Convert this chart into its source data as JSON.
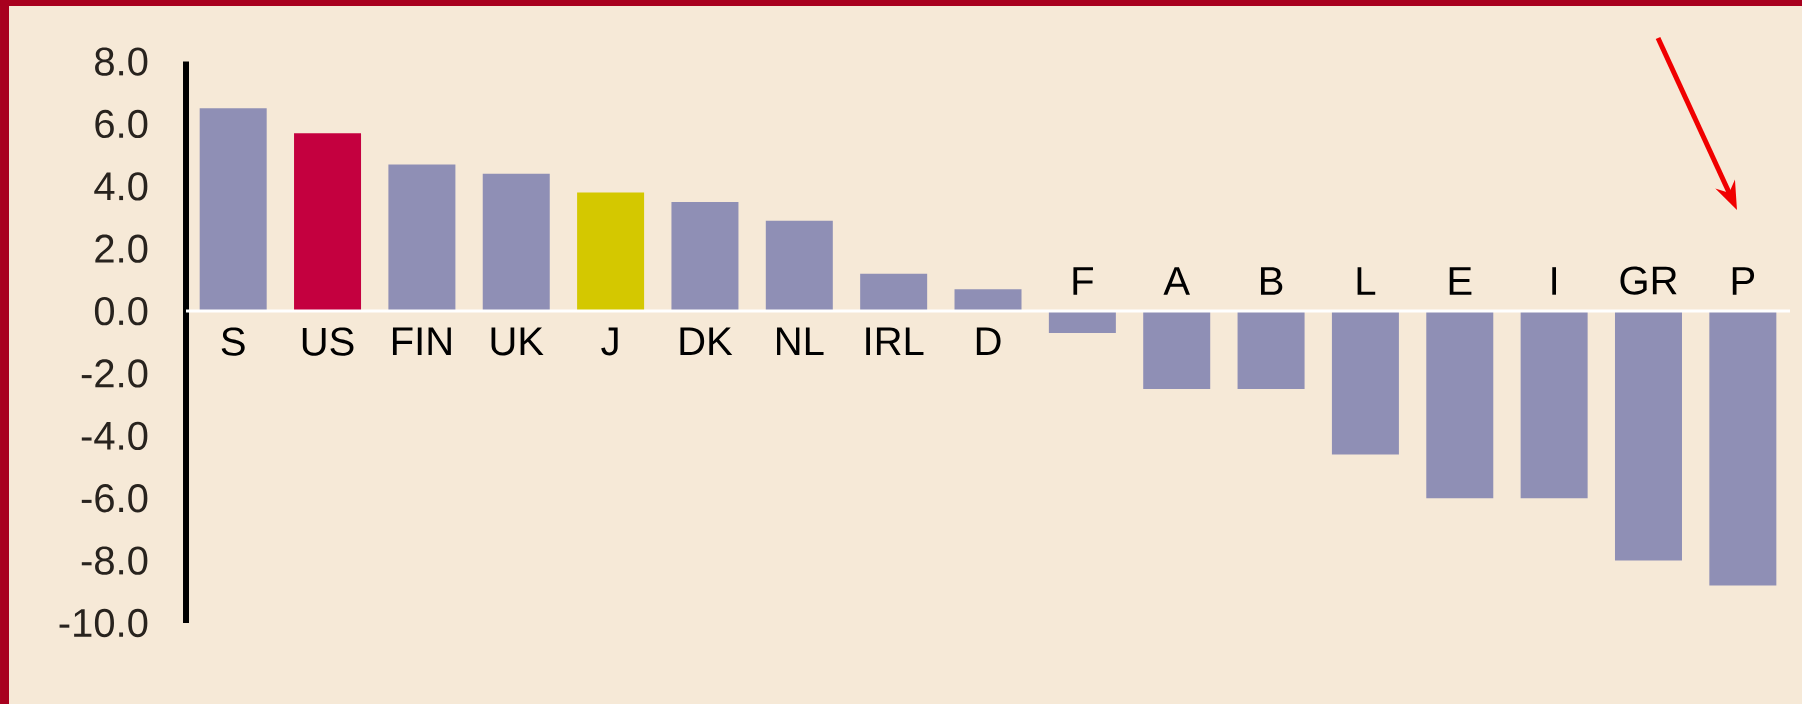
{
  "chart_data": {
    "type": "bar",
    "categories": [
      "S",
      "US",
      "FIN",
      "UK",
      "J",
      "DK",
      "NL",
      "IRL",
      "D",
      "F",
      "A",
      "B",
      "L",
      "E",
      "I",
      "GR",
      "P"
    ],
    "values": [
      6.5,
      5.7,
      4.7,
      4.4,
      3.8,
      3.5,
      2.9,
      1.2,
      0.7,
      -0.7,
      -2.5,
      -2.5,
      -4.6,
      -6.0,
      -6.0,
      -8.0,
      -8.8
    ],
    "colors": [
      "#8f8fb5",
      "#c4003f",
      "#8f8fb5",
      "#8f8fb5",
      "#d4c800",
      "#8f8fb5",
      "#8f8fb5",
      "#8f8fb5",
      "#8f8fb5",
      "#8f8fb5",
      "#8f8fb5",
      "#8f8fb5",
      "#8f8fb5",
      "#8f8fb5",
      "#8f8fb5",
      "#8f8fb5",
      "#8f8fb5"
    ],
    "ylim": [
      -10,
      8
    ],
    "yticks": [
      {
        "value": 8,
        "label": "8.0"
      },
      {
        "value": 6,
        "label": "6.0"
      },
      {
        "value": 4,
        "label": "4.0"
      },
      {
        "value": 2,
        "label": "2.0"
      },
      {
        "value": 0,
        "label": "0.0"
      },
      {
        "value": -2,
        "label": "-2.0"
      },
      {
        "value": -4,
        "label": "-4.0"
      },
      {
        "value": -6,
        "label": "-6.0"
      },
      {
        "value": -8,
        "label": "-8.0"
      },
      {
        "value": -10,
        "label": "-10.0"
      }
    ],
    "grid": false
  }
}
